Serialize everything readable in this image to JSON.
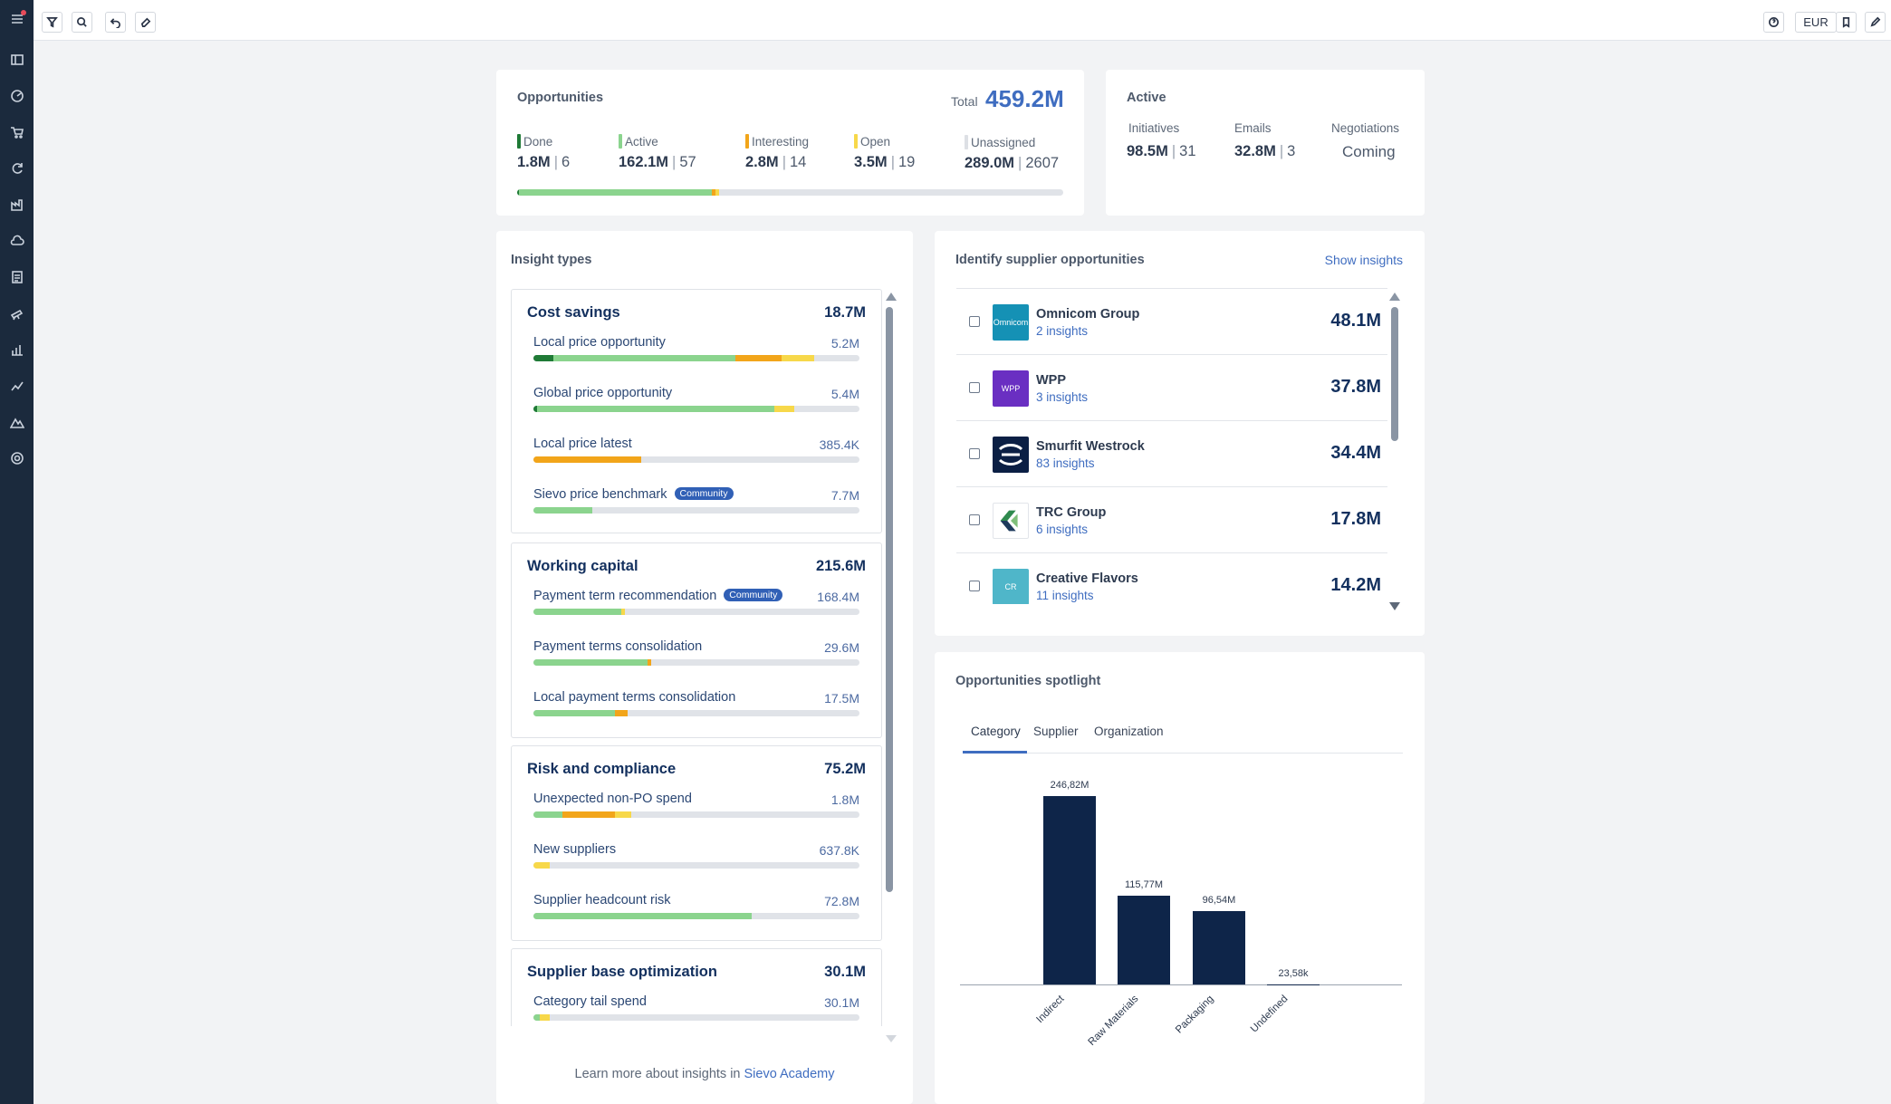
{
  "toolbar": {
    "currency": "EUR"
  },
  "sidebar": {
    "icons": [
      "menu-icon",
      "dashboard-icon",
      "analytics-icon",
      "cart-icon",
      "refresh-icon",
      "factory-icon",
      "cloud-icon",
      "report-icon",
      "telescope-icon",
      "bar-chart-icon",
      "trend-icon",
      "landscape-icon",
      "settings-icon"
    ]
  },
  "opportunities": {
    "title": "Opportunities",
    "total_label": "Total",
    "total_value": "459.2M",
    "legend": [
      {
        "label": "Done",
        "value": "1.8M",
        "count": "6",
        "color": "#1f7a36"
      },
      {
        "label": "Active",
        "value": "162.1M",
        "count": "57",
        "color": "#8bd48e"
      },
      {
        "label": "Interesting",
        "value": "2.8M",
        "count": "14",
        "color": "#f2a51a"
      },
      {
        "label": "Open",
        "value": "3.5M",
        "count": "19",
        "color": "#f7d84a"
      },
      {
        "label": "Unassigned",
        "value": "289.0M",
        "count": "2607",
        "color": "#dde0e5"
      }
    ]
  },
  "active": {
    "title": "Active",
    "cols": [
      {
        "label": "Initiatives",
        "value": "98.5M",
        "count": "31"
      },
      {
        "label": "Emails",
        "value": "32.8M",
        "count": "3"
      },
      {
        "label": "Negotiations",
        "value": "Coming"
      }
    ]
  },
  "insight_types": {
    "title": "Insight types",
    "groups": [
      {
        "title": "Cost savings",
        "value": "18.7M",
        "rows": [
          {
            "label": "Local price opportunity",
            "value": "5.2M",
            "community": "",
            "segs": [
              [
                0,
                0.06,
                "#1f7a36"
              ],
              [
                0.06,
                0.62,
                "#8bd48e"
              ],
              [
                0.62,
                0.76,
                "#f2a51a"
              ],
              [
                0.76,
                0.86,
                "#f7d84a"
              ]
            ]
          },
          {
            "label": "Global price opportunity",
            "value": "5.4M",
            "community": "",
            "segs": [
              [
                0,
                0.01,
                "#1f7a36"
              ],
              [
                0.01,
                0.74,
                "#8bd48e"
              ],
              [
                0.74,
                0.8,
                "#f7d84a"
              ]
            ]
          },
          {
            "label": "Local price latest",
            "value": "385.4K",
            "community": "",
            "segs": [
              [
                0,
                0.33,
                "#f2a51a"
              ]
            ]
          },
          {
            "label": "Sievo price benchmark",
            "value": "7.7M",
            "community": "Community",
            "segs": [
              [
                0,
                0.18,
                "#8bd48e"
              ]
            ]
          }
        ]
      },
      {
        "title": "Working capital",
        "value": "215.6M",
        "rows": [
          {
            "label": "Payment term recommendation",
            "value": "168.4M",
            "community": "Community",
            "segs": [
              [
                0,
                0.27,
                "#8bd48e"
              ],
              [
                0.27,
                0.28,
                "#f7d84a"
              ]
            ]
          },
          {
            "label": "Payment terms consolidation",
            "value": "29.6M",
            "community": "",
            "segs": [
              [
                0,
                0.35,
                "#8bd48e"
              ],
              [
                0.35,
                0.36,
                "#f2a51a"
              ]
            ]
          },
          {
            "label": "Local payment terms consolidation",
            "value": "17.5M",
            "community": "",
            "segs": [
              [
                0,
                0.25,
                "#8bd48e"
              ],
              [
                0.25,
                0.29,
                "#f2a51a"
              ]
            ]
          }
        ]
      },
      {
        "title": "Risk and compliance",
        "value": "75.2M",
        "rows": [
          {
            "label": "Unexpected non-PO spend",
            "value": "1.8M",
            "community": "",
            "segs": [
              [
                0,
                0.09,
                "#8bd48e"
              ],
              [
                0.09,
                0.25,
                "#f2a51a"
              ],
              [
                0.25,
                0.3,
                "#f7d84a"
              ]
            ]
          },
          {
            "label": "New suppliers",
            "value": "637.8K",
            "community": "",
            "segs": [
              [
                0,
                0.05,
                "#f7d84a"
              ]
            ]
          },
          {
            "label": "Supplier headcount risk",
            "value": "72.8M",
            "community": "",
            "segs": [
              [
                0,
                0.67,
                "#8bd48e"
              ]
            ]
          }
        ]
      },
      {
        "title": "Supplier base optimization",
        "value": "30.1M",
        "rows": [
          {
            "label": "Category tail spend",
            "value": "30.1M",
            "community": "",
            "segs": [
              [
                0,
                0.02,
                "#8bd48e"
              ],
              [
                0.02,
                0.05,
                "#f7d84a"
              ]
            ]
          }
        ]
      }
    ],
    "footer_text": "Learn more about insights in ",
    "footer_link": "Sievo Academy"
  },
  "suppliers": {
    "title": "Identify supplier opportunities",
    "show_insights": "Show insights",
    "items": [
      {
        "name": "Omnicom Group",
        "insights": "2 insights",
        "value": "48.1M",
        "logo_text": "Omnicom",
        "logo_color": "#1591b5",
        "logo_icon": "omnicom-logo-icon"
      },
      {
        "name": "WPP",
        "insights": "3 insights",
        "value": "37.8M",
        "logo_text": "WPP",
        "logo_color": "#6a2fc2",
        "logo_icon": "wpp-logo-icon"
      },
      {
        "name": "Smurfit Westrock",
        "insights": "83 insights",
        "value": "34.4M",
        "logo_text": "",
        "logo_color": "#0b1f44",
        "logo_icon": "smurfit-westrock-logo-icon"
      },
      {
        "name": "TRC Group",
        "insights": "6 insights",
        "value": "17.8M",
        "logo_text": "",
        "logo_color": "#ffffff",
        "logo_icon": "trc-group-logo-icon"
      },
      {
        "name": "Creative Flavors",
        "insights": "11 insights",
        "value": "14.2M",
        "logo_text": "CR",
        "logo_color": "#4fb6c9",
        "logo_icon": "creative-flavors-logo-icon"
      }
    ]
  },
  "spotlight": {
    "title": "Opportunities spotlight",
    "tabs": [
      "Category",
      "Supplier",
      "Organization"
    ],
    "active_tab": "Category"
  },
  "chart_data": {
    "type": "bar",
    "categories": [
      "Indirect",
      "Raw Materials",
      "Packaging",
      "Undefined"
    ],
    "values": [
      246.82,
      115.77,
      96.54,
      0.02358
    ],
    "data_labels": [
      "246,82M",
      "115,77M",
      "96,54M",
      "23,58k"
    ],
    "ylim": [
      0,
      246.82
    ],
    "color": "#0e2549"
  }
}
